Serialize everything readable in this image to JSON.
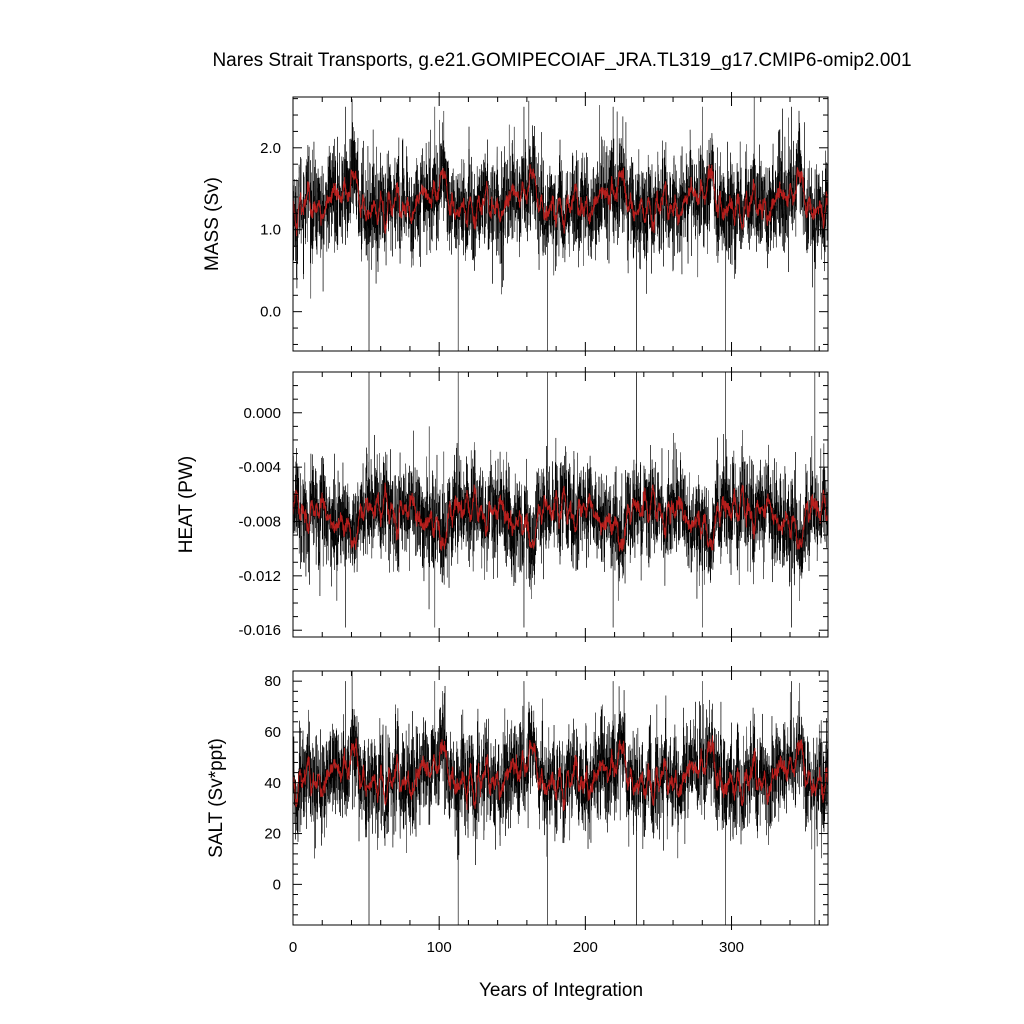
{
  "chart_data": {
    "type": "line",
    "title": "Nares Strait Transports, g.e21.GOMIPECOIAF_JRA.TL319_g17.CMIP6-omip2.001",
    "xlabel": "Years of Integration",
    "xlim": [
      0,
      366
    ],
    "x_ticks": [
      0,
      100,
      200,
      300
    ],
    "x_tick_labels": [
      "0",
      "100",
      "200",
      "300"
    ],
    "grid": false,
    "legend": "none",
    "forcing_cycle_years": 61,
    "colors": {
      "raw": "#000000",
      "smoothed": "#c8201e",
      "axes": "#000000"
    },
    "panels": [
      {
        "ylabel": "MASS (Sv)",
        "ylim": [
          -0.48,
          2.62
        ],
        "y_ticks": [
          0.0,
          1.0,
          2.0
        ],
        "y_tick_labels": [
          "0.0",
          "1.0",
          "2.0"
        ],
        "minor_step": 0.2,
        "series": [
          {
            "role": "monthly",
            "mean": 1.3,
            "std": 0.3,
            "max": 2.62,
            "min": -0.48,
            "dip_years": [
              52,
              113,
              174,
              235,
              296,
              357
            ],
            "dip_value": -0.48,
            "spike_years": [
              36,
              97,
              158,
              219,
              280,
              341
            ],
            "spike_value": 2.5
          },
          {
            "role": "smoothed",
            "range": [
              1.0,
              1.7
            ]
          }
        ]
      },
      {
        "ylabel": "HEAT (PW)",
        "ylim": [
          -0.0165,
          0.003
        ],
        "y_ticks": [
          0.0,
          -0.004,
          -0.008,
          -0.012,
          -0.016
        ],
        "y_tick_labels": [
          "0.000",
          "-0.004",
          "-0.008",
          "-0.012",
          "-0.016"
        ],
        "minor_step": 0.001,
        "series": [
          {
            "role": "monthly",
            "mean": -0.0073,
            "std": 0.0018,
            "max": 0.003,
            "min": -0.0165,
            "spike_years": [
              52,
              113,
              174,
              235,
              296,
              357
            ],
            "spike_value": 0.003,
            "dip_years": [
              36,
              97,
              158,
              219,
              280,
              341
            ],
            "dip_value": -0.0158
          },
          {
            "role": "smoothed",
            "range": [
              -0.0098,
              -0.0055
            ]
          }
        ]
      },
      {
        "ylabel": "SALT (Sv*ppt)",
        "ylim": [
          -16,
          84
        ],
        "y_ticks": [
          0,
          20,
          40,
          60,
          80
        ],
        "y_tick_labels": [
          "0",
          "20",
          "40",
          "60",
          "80"
        ],
        "minor_step": 4,
        "series": [
          {
            "role": "monthly",
            "mean": 41,
            "std": 9.5,
            "max": 84,
            "min": -16,
            "dip_years": [
              52,
              113,
              174,
              235,
              296,
              357
            ],
            "dip_value": -16,
            "spike_years": [
              36,
              97,
              158,
              219,
              280,
              341
            ],
            "spike_value": 80
          },
          {
            "role": "smoothed",
            "range": [
              31,
              55
            ]
          }
        ]
      }
    ]
  }
}
